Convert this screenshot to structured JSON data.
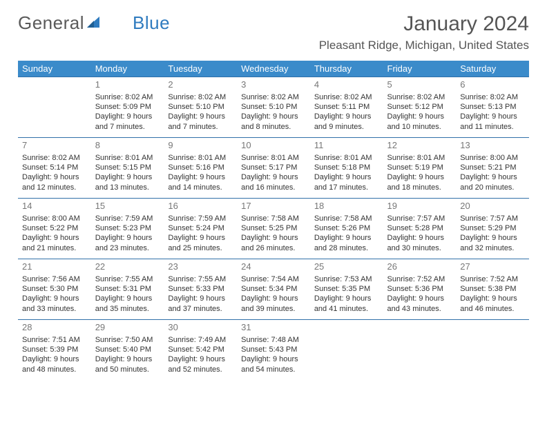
{
  "brand": {
    "part1": "General",
    "part2": "Blue"
  },
  "title": "January 2024",
  "location": "Pleasant Ridge, Michigan, United States",
  "colors": {
    "header_bg": "#3b8bca",
    "header_text": "#ffffff",
    "rule": "#2f6fa8",
    "text": "#333333",
    "daynum": "#777777",
    "title": "#555555",
    "brand_gray": "#5a5a5a",
    "brand_blue": "#2f7bbf"
  },
  "day_headers": [
    "Sunday",
    "Monday",
    "Tuesday",
    "Wednesday",
    "Thursday",
    "Friday",
    "Saturday"
  ],
  "weeks": [
    [
      {
        "n": "",
        "lines": []
      },
      {
        "n": "1",
        "lines": [
          "Sunrise: 8:02 AM",
          "Sunset: 5:09 PM",
          "Daylight: 9 hours",
          "and 7 minutes."
        ]
      },
      {
        "n": "2",
        "lines": [
          "Sunrise: 8:02 AM",
          "Sunset: 5:10 PM",
          "Daylight: 9 hours",
          "and 7 minutes."
        ]
      },
      {
        "n": "3",
        "lines": [
          "Sunrise: 8:02 AM",
          "Sunset: 5:10 PM",
          "Daylight: 9 hours",
          "and 8 minutes."
        ]
      },
      {
        "n": "4",
        "lines": [
          "Sunrise: 8:02 AM",
          "Sunset: 5:11 PM",
          "Daylight: 9 hours",
          "and 9 minutes."
        ]
      },
      {
        "n": "5",
        "lines": [
          "Sunrise: 8:02 AM",
          "Sunset: 5:12 PM",
          "Daylight: 9 hours",
          "and 10 minutes."
        ]
      },
      {
        "n": "6",
        "lines": [
          "Sunrise: 8:02 AM",
          "Sunset: 5:13 PM",
          "Daylight: 9 hours",
          "and 11 minutes."
        ]
      }
    ],
    [
      {
        "n": "7",
        "lines": [
          "Sunrise: 8:02 AM",
          "Sunset: 5:14 PM",
          "Daylight: 9 hours",
          "and 12 minutes."
        ]
      },
      {
        "n": "8",
        "lines": [
          "Sunrise: 8:01 AM",
          "Sunset: 5:15 PM",
          "Daylight: 9 hours",
          "and 13 minutes."
        ]
      },
      {
        "n": "9",
        "lines": [
          "Sunrise: 8:01 AM",
          "Sunset: 5:16 PM",
          "Daylight: 9 hours",
          "and 14 minutes."
        ]
      },
      {
        "n": "10",
        "lines": [
          "Sunrise: 8:01 AM",
          "Sunset: 5:17 PM",
          "Daylight: 9 hours",
          "and 16 minutes."
        ]
      },
      {
        "n": "11",
        "lines": [
          "Sunrise: 8:01 AM",
          "Sunset: 5:18 PM",
          "Daylight: 9 hours",
          "and 17 minutes."
        ]
      },
      {
        "n": "12",
        "lines": [
          "Sunrise: 8:01 AM",
          "Sunset: 5:19 PM",
          "Daylight: 9 hours",
          "and 18 minutes."
        ]
      },
      {
        "n": "13",
        "lines": [
          "Sunrise: 8:00 AM",
          "Sunset: 5:21 PM",
          "Daylight: 9 hours",
          "and 20 minutes."
        ]
      }
    ],
    [
      {
        "n": "14",
        "lines": [
          "Sunrise: 8:00 AM",
          "Sunset: 5:22 PM",
          "Daylight: 9 hours",
          "and 21 minutes."
        ]
      },
      {
        "n": "15",
        "lines": [
          "Sunrise: 7:59 AM",
          "Sunset: 5:23 PM",
          "Daylight: 9 hours",
          "and 23 minutes."
        ]
      },
      {
        "n": "16",
        "lines": [
          "Sunrise: 7:59 AM",
          "Sunset: 5:24 PM",
          "Daylight: 9 hours",
          "and 25 minutes."
        ]
      },
      {
        "n": "17",
        "lines": [
          "Sunrise: 7:58 AM",
          "Sunset: 5:25 PM",
          "Daylight: 9 hours",
          "and 26 minutes."
        ]
      },
      {
        "n": "18",
        "lines": [
          "Sunrise: 7:58 AM",
          "Sunset: 5:26 PM",
          "Daylight: 9 hours",
          "and 28 minutes."
        ]
      },
      {
        "n": "19",
        "lines": [
          "Sunrise: 7:57 AM",
          "Sunset: 5:28 PM",
          "Daylight: 9 hours",
          "and 30 minutes."
        ]
      },
      {
        "n": "20",
        "lines": [
          "Sunrise: 7:57 AM",
          "Sunset: 5:29 PM",
          "Daylight: 9 hours",
          "and 32 minutes."
        ]
      }
    ],
    [
      {
        "n": "21",
        "lines": [
          "Sunrise: 7:56 AM",
          "Sunset: 5:30 PM",
          "Daylight: 9 hours",
          "and 33 minutes."
        ]
      },
      {
        "n": "22",
        "lines": [
          "Sunrise: 7:55 AM",
          "Sunset: 5:31 PM",
          "Daylight: 9 hours",
          "and 35 minutes."
        ]
      },
      {
        "n": "23",
        "lines": [
          "Sunrise: 7:55 AM",
          "Sunset: 5:33 PM",
          "Daylight: 9 hours",
          "and 37 minutes."
        ]
      },
      {
        "n": "24",
        "lines": [
          "Sunrise: 7:54 AM",
          "Sunset: 5:34 PM",
          "Daylight: 9 hours",
          "and 39 minutes."
        ]
      },
      {
        "n": "25",
        "lines": [
          "Sunrise: 7:53 AM",
          "Sunset: 5:35 PM",
          "Daylight: 9 hours",
          "and 41 minutes."
        ]
      },
      {
        "n": "26",
        "lines": [
          "Sunrise: 7:52 AM",
          "Sunset: 5:36 PM",
          "Daylight: 9 hours",
          "and 43 minutes."
        ]
      },
      {
        "n": "27",
        "lines": [
          "Sunrise: 7:52 AM",
          "Sunset: 5:38 PM",
          "Daylight: 9 hours",
          "and 46 minutes."
        ]
      }
    ],
    [
      {
        "n": "28",
        "lines": [
          "Sunrise: 7:51 AM",
          "Sunset: 5:39 PM",
          "Daylight: 9 hours",
          "and 48 minutes."
        ]
      },
      {
        "n": "29",
        "lines": [
          "Sunrise: 7:50 AM",
          "Sunset: 5:40 PM",
          "Daylight: 9 hours",
          "and 50 minutes."
        ]
      },
      {
        "n": "30",
        "lines": [
          "Sunrise: 7:49 AM",
          "Sunset: 5:42 PM",
          "Daylight: 9 hours",
          "and 52 minutes."
        ]
      },
      {
        "n": "31",
        "lines": [
          "Sunrise: 7:48 AM",
          "Sunset: 5:43 PM",
          "Daylight: 9 hours",
          "and 54 minutes."
        ]
      },
      {
        "n": "",
        "lines": []
      },
      {
        "n": "",
        "lines": []
      },
      {
        "n": "",
        "lines": []
      }
    ]
  ]
}
